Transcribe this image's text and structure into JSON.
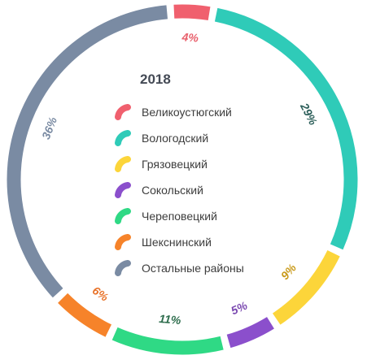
{
  "chart_data": {
    "type": "pie",
    "title": "2018",
    "categories": [
      "Великоустюгский",
      "Вологодский",
      "Грязовецкий",
      "Сокольский",
      "Череповецкий",
      "Шекснинский",
      "Остальные районы"
    ],
    "values": [
      4,
      29,
      9,
      5,
      11,
      6,
      36
    ],
    "data_labels": [
      "4%",
      "29%",
      "9%",
      "5%",
      "11%",
      "6%",
      "36%"
    ],
    "colors": [
      "#f0606e",
      "#2fcbb8",
      "#fcd53a",
      "#8b4fcc",
      "#2fd985",
      "#f6832a",
      "#7a8ba3"
    ],
    "label_colors": [
      "#e8606c",
      "#2d5f5a",
      "#c99a1a",
      "#7a48b0",
      "#2f6e4e",
      "#e8732a",
      "#7a8ba3"
    ],
    "legend": "center"
  }
}
